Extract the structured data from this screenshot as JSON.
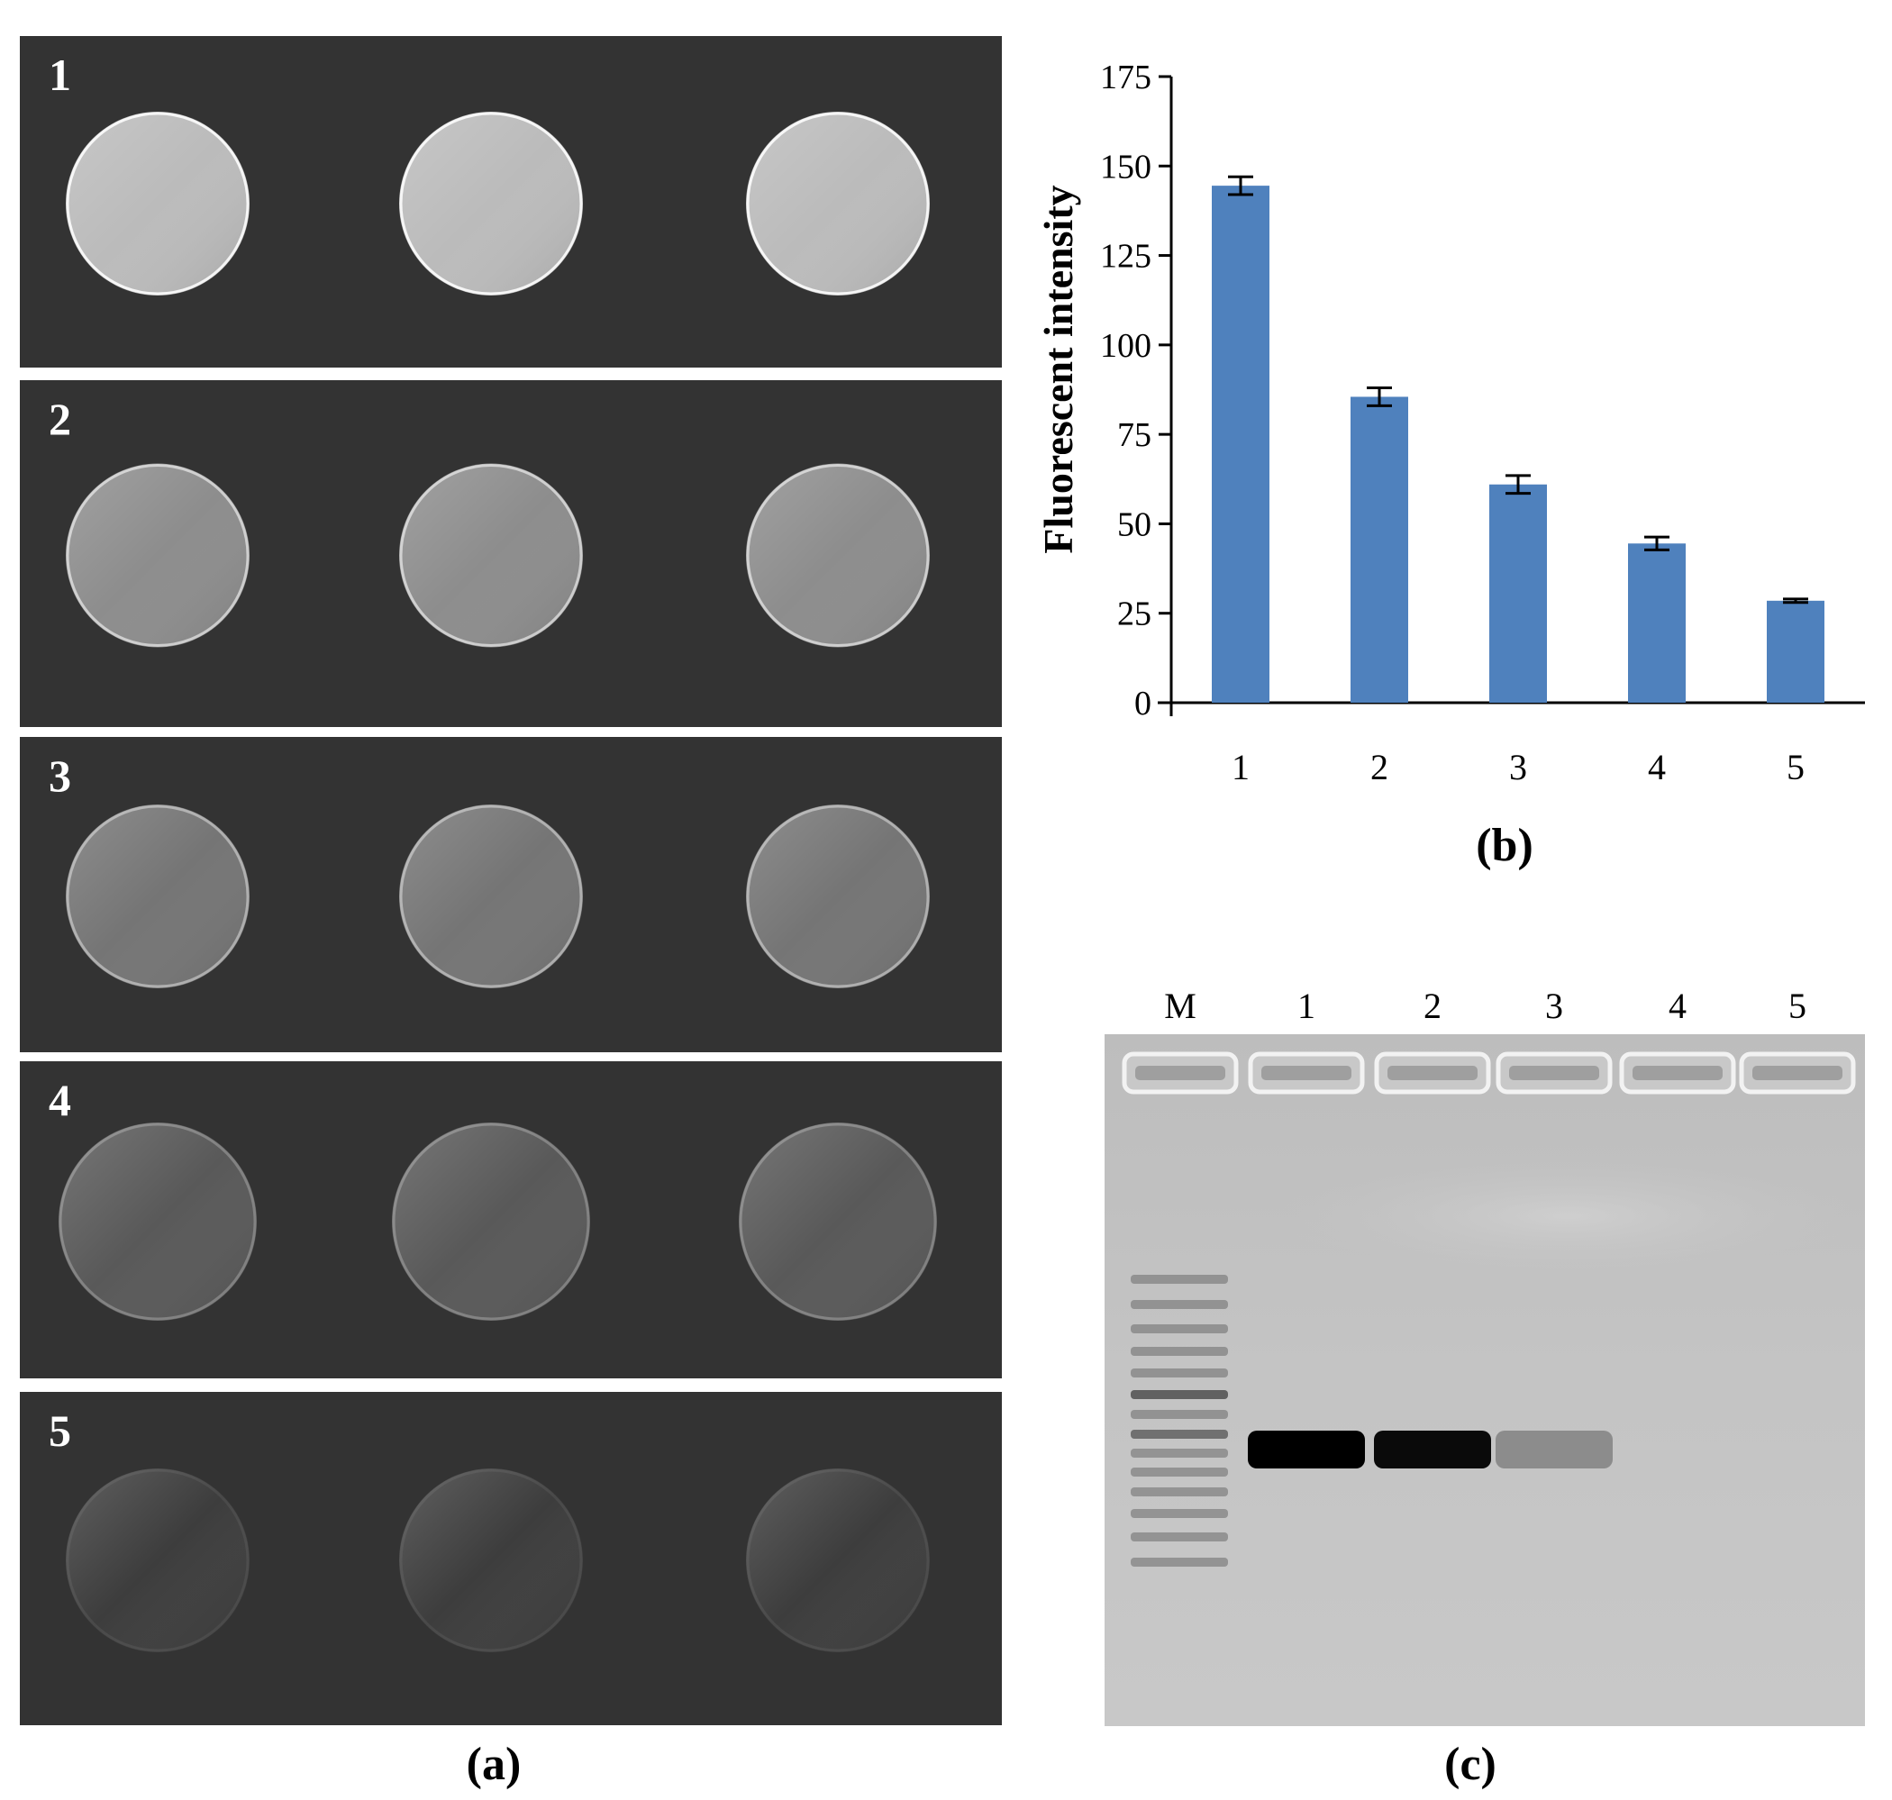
{
  "panel_a": {
    "caption": "(a)",
    "rows": [
      {
        "label": "1",
        "brightness": 0.78
      },
      {
        "label": "2",
        "brightness": 0.52
      },
      {
        "label": "3",
        "brightness": 0.38
      },
      {
        "label": "4",
        "brightness": 0.22
      },
      {
        "label": "5",
        "brightness": 0.06
      }
    ]
  },
  "panel_b": {
    "caption": "(b)"
  },
  "chart_data": {
    "type": "bar",
    "title": "",
    "xlabel": "",
    "ylabel": "Fluorescent intensity",
    "categories": [
      "1",
      "2",
      "3",
      "4",
      "5"
    ],
    "values": [
      144.5,
      85.5,
      61,
      44.5,
      28.5
    ],
    "errors": [
      2.5,
      2.5,
      2.5,
      1.8,
      0.5
    ],
    "ylim": [
      0,
      175
    ],
    "yticks": [
      0,
      25,
      50,
      75,
      100,
      125,
      150,
      175
    ],
    "grid": false,
    "bar_color": "#4f81bd"
  },
  "panel_c": {
    "caption": "(c)",
    "lane_labels": [
      "M",
      "1",
      "2",
      "3",
      "4",
      "5"
    ],
    "band_intensity": [
      1.0,
      0.95,
      0.3,
      0.0,
      0.0
    ]
  }
}
